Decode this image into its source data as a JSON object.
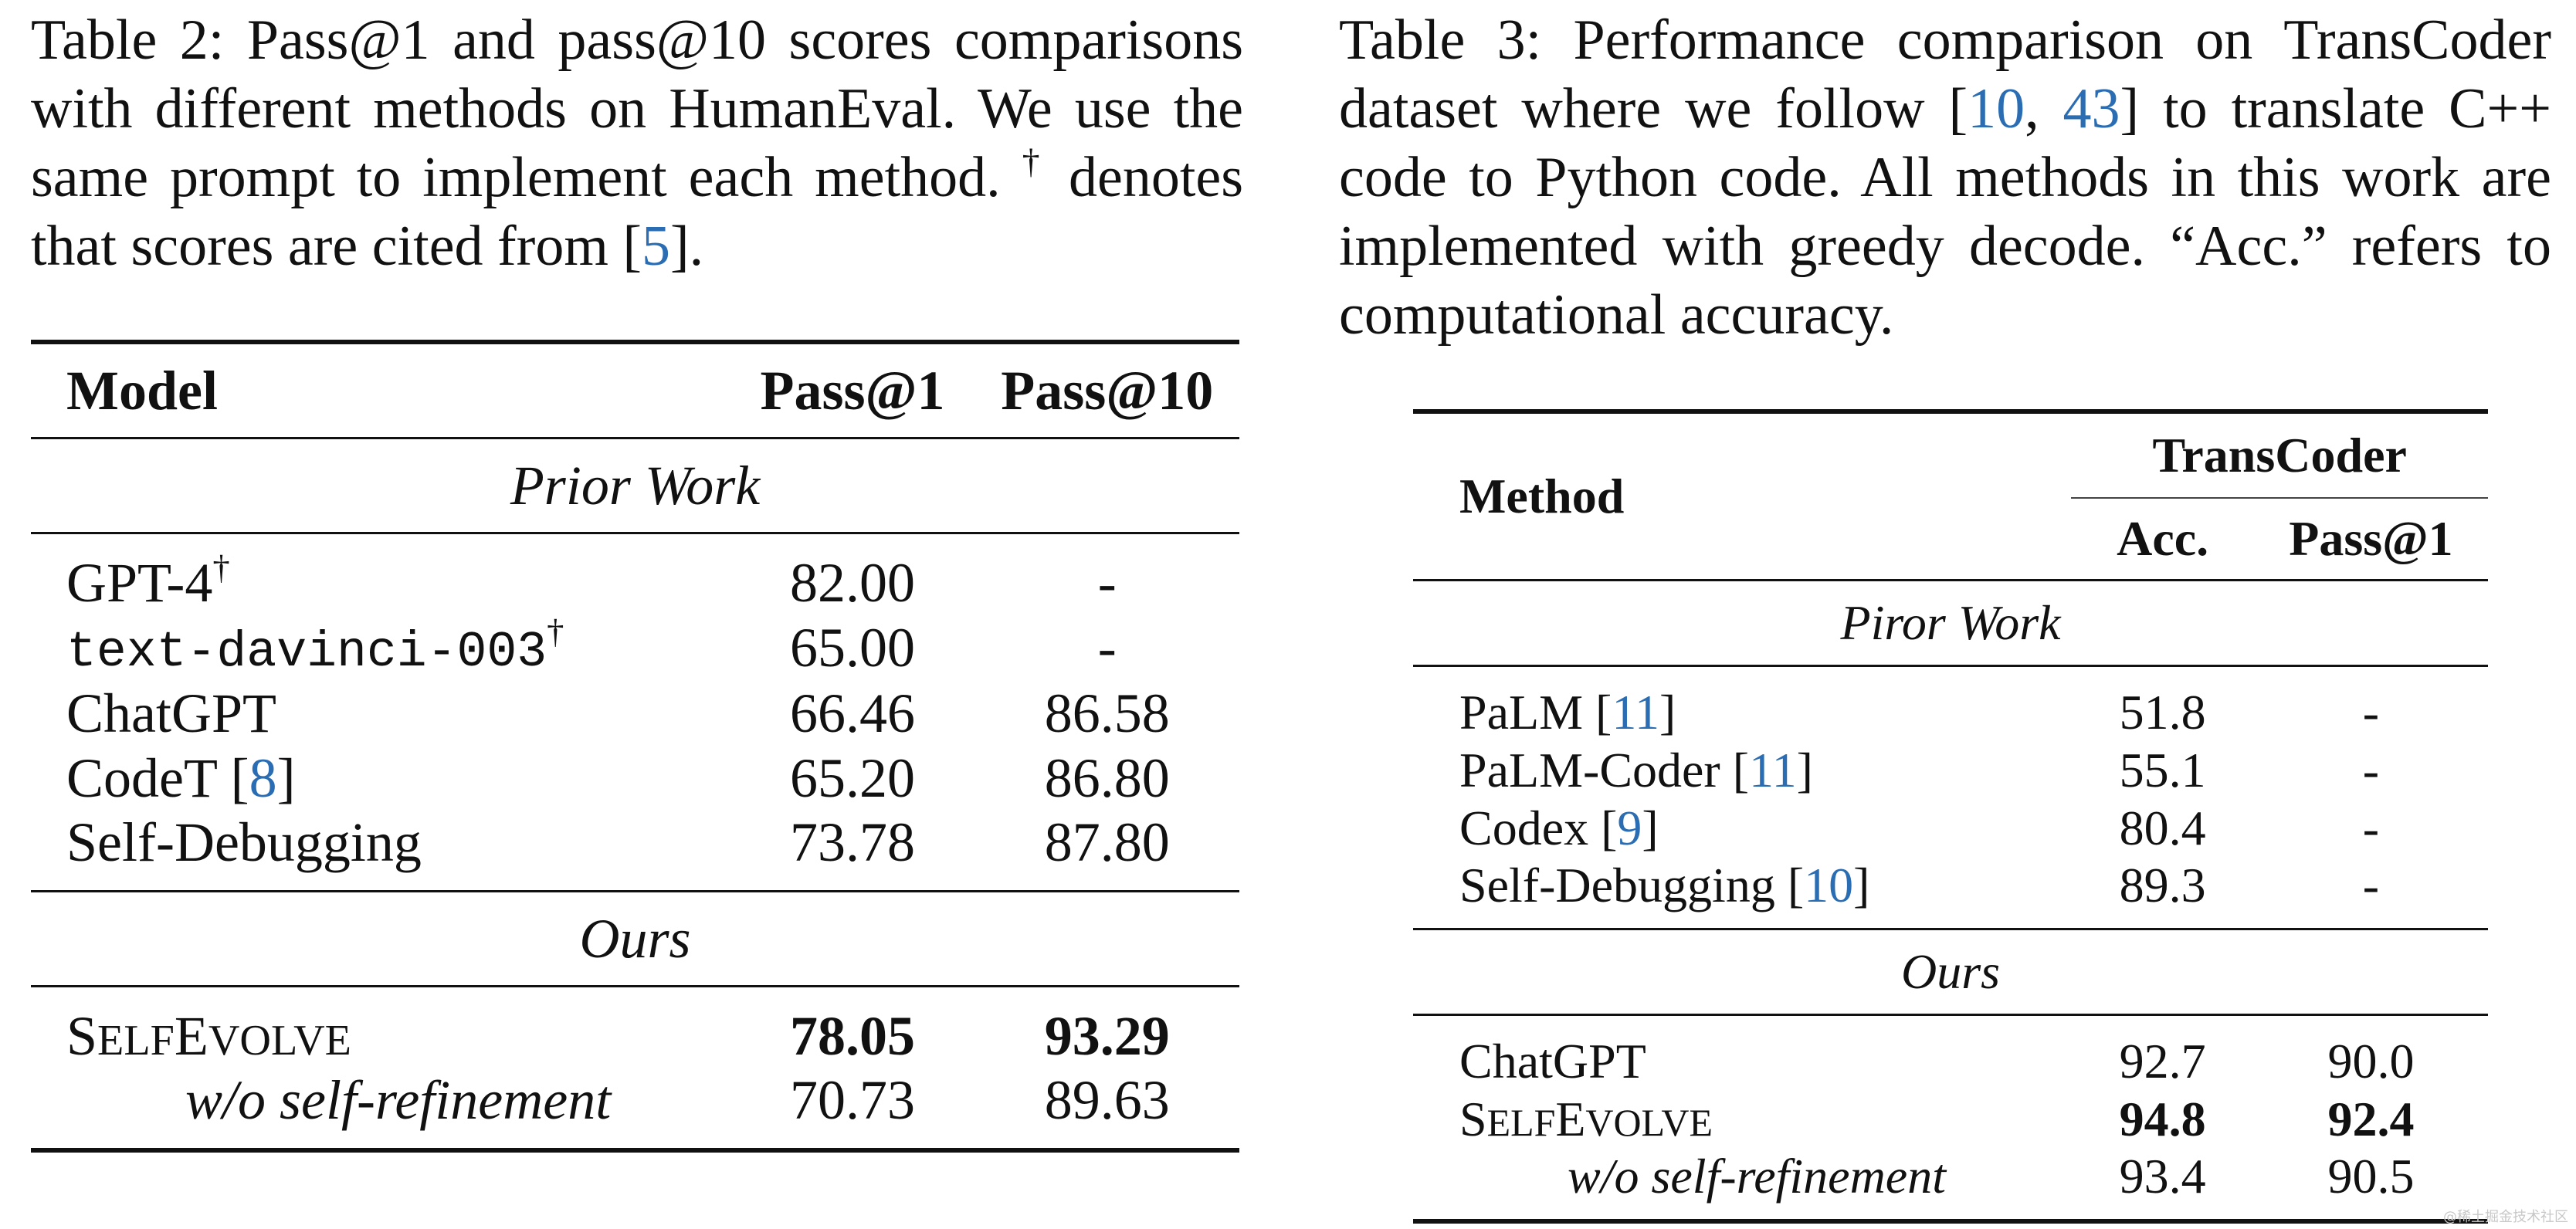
{
  "table2": {
    "caption_label": "Table 2:",
    "caption_text": "Pass@1 and pass@10 scores comparisons with different methods on HumanEval. We use the same prompt to implement each method.",
    "caption_dagger": "†",
    "caption_note_pre": "denotes that scores are cited from [",
    "caption_note_cite": "5",
    "caption_note_post": "].",
    "headers": {
      "model": "Model",
      "pass1": "Pass@1",
      "pass10": "Pass@10"
    },
    "section_prior": "Prior Work",
    "section_ours": "Ours",
    "dagger": "†",
    "rows_prior": [
      {
        "model": "GPT-4",
        "pass1": "82.00",
        "pass10": "-"
      },
      {
        "model": "text-davinci-003",
        "pass1": "65.00",
        "pass10": "-"
      },
      {
        "model": "ChatGPT",
        "pass1": "66.46",
        "pass10": "86.58"
      },
      {
        "model": "CodeT [",
        "cite": "8",
        "model_end": "]",
        "pass1": "65.20",
        "pass10": "86.80"
      },
      {
        "model": "Self-Debugging",
        "pass1": "73.78",
        "pass10": "87.80"
      }
    ],
    "rows_ours": [
      {
        "model_s": "S",
        "model_elf": "ELF",
        "model_e": "E",
        "model_volve": "VOLVE",
        "pass1": "78.05",
        "pass10": "93.29"
      },
      {
        "model": "w/o self-refinement",
        "pass1": "70.73",
        "pass10": "89.63"
      }
    ]
  },
  "table3": {
    "caption_label": "Table 3:",
    "caption_pre": "Performance comparison on TransCoder dataset where we follow [",
    "caption_cite1": "10",
    "caption_comma": ", ",
    "caption_cite2": "43",
    "caption_post": "] to translate C++ code to Python code. All methods in this work are implemented with greedy decode. “Acc.” refers to computational accuracy.",
    "headers": {
      "method": "Method",
      "group": "TransCoder",
      "acc": "Acc.",
      "pass1": "Pass@1"
    },
    "section_prior": "Piror Work",
    "section_ours": "Ours",
    "rows_prior": [
      {
        "method": "PaLM [",
        "cite": "11",
        "method_end": "]",
        "acc": "51.8",
        "pass1": "-"
      },
      {
        "method": "PaLM-Coder [",
        "cite": "11",
        "method_end": "]",
        "acc": "55.1",
        "pass1": "-"
      },
      {
        "method": "Codex [",
        "cite": "9",
        "method_end": "]",
        "acc": "80.4",
        "pass1": "-"
      },
      {
        "method": "Self-Debugging [",
        "cite": "10",
        "method_end": "]",
        "acc": "89.3",
        "pass1": "-"
      }
    ],
    "rows_ours": [
      {
        "method": "ChatGPT",
        "acc": "92.7",
        "pass1": "90.0"
      },
      {
        "method_s": "S",
        "method_elf": "ELF",
        "method_e": "E",
        "method_volve": "VOLVE",
        "acc": "94.8",
        "pass1": "92.4"
      },
      {
        "method": "w/o self-refinement",
        "acc": "93.4",
        "pass1": "90.5"
      }
    ]
  },
  "watermark": "@稀土掘金技术社区"
}
